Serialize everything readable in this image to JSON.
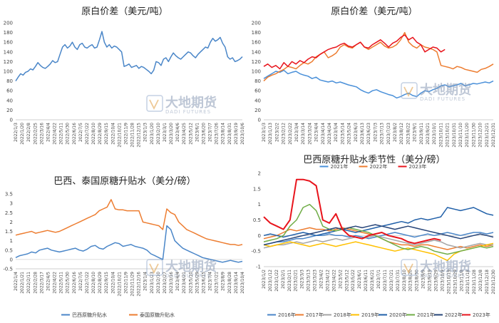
{
  "watermark": {
    "cn": "大地期货",
    "en": "DADI FUTURES"
  },
  "chart_data": [
    {
      "id": "c1",
      "type": "line",
      "title": "原白价差（美元/吨）",
      "ylim": [
        0,
        200
      ],
      "yticks": [
        0,
        20,
        40,
        60,
        80,
        100,
        120,
        140,
        160,
        180,
        200
      ],
      "x_tick_labels": [
        "2022/1/3",
        "2022/1/20",
        "2022/2/8",
        "2022/2/25",
        "2022/3/16",
        "2022/4/4",
        "2022/4/22",
        "2022/5/11",
        "2022/5/30",
        "2022/6/16",
        "2022/7/5",
        "2022/7/22",
        "2022/8/10",
        "2022/8/29",
        "2022/9/15",
        "2022/10/4",
        "2022/10/21",
        "2022/11/9",
        "2022/11/28",
        "2022/12/15",
        "2023/1/3",
        "2023/1/20",
        "2023/2/10",
        "2023/3/1",
        "2023/3/20",
        "2023/4/6",
        "2023/4/25",
        "2023/5/12",
        "2023/6/1",
        "2023/6/20",
        "2023/7/7",
        "2023/7/26",
        "2023/8/14",
        "2023/8/31",
        "2023/9/19",
        "2023/10/6"
      ],
      "series": [
        {
          "color": "#4a86c8",
          "values": [
            80,
            88,
            95,
            92,
            98,
            100,
            105,
            103,
            110,
            118,
            112,
            108,
            106,
            110,
            115,
            122,
            118,
            120,
            135,
            150,
            155,
            148,
            152,
            160,
            150,
            145,
            155,
            158,
            150,
            148,
            152,
            155,
            148,
            150,
            165,
            182,
            160,
            150,
            155,
            148,
            152,
            150,
            145,
            140,
            110,
            112,
            115,
            108,
            110,
            112,
            106,
            110,
            108,
            104,
            100,
            95,
            102,
            120,
            118,
            112,
            125,
            128,
            120,
            130,
            138,
            132,
            128,
            125,
            130,
            135,
            140,
            138,
            132,
            128,
            135,
            140,
            145,
            150,
            148,
            160,
            168,
            162,
            165,
            170,
            158,
            150,
            130,
            125,
            128,
            120,
            122,
            125,
            130
          ]
        }
      ]
    },
    {
      "id": "c2",
      "type": "line",
      "title": "原白价差（美元/吨）",
      "ylim": [
        0,
        200
      ],
      "yticks": [
        0,
        20,
        40,
        60,
        80,
        100,
        120,
        140,
        160,
        180,
        200
      ],
      "x_tick_labels": [
        "2023/1/3",
        "2023/1/13",
        "2023/2/2",
        "2023/2/12",
        "2023/2/22",
        "2023/3/4",
        "2023/3/14",
        "2023/3/24",
        "2023/4/4",
        "2023/4/14",
        "2023/4/24",
        "2023/5/4",
        "2023/5/14",
        "2023/5/24",
        "2023/6/3",
        "2023/6/13",
        "2023/6/23",
        "2023/7/3",
        "2023/7/13",
        "2023/7/23",
        "2023/8/2",
        "2023/8/12",
        "2023/8/22",
        "2023/9/1",
        "2023/9/11",
        "2023/9/21",
        "2023/10/1",
        "2023/10/11",
        "2023/10/21",
        "2023/10/31",
        "2023/11/10",
        "2023/11/20",
        "2023/11/30",
        "2023/12/10",
        "2023/12/21",
        "2023/12/31"
      ],
      "legend": [
        "2021年",
        "2022年",
        "2023年"
      ],
      "series": [
        {
          "name": "2021年",
          "color": "#4a90d9",
          "values": [
            85,
            90,
            95,
            100,
            98,
            102,
            95,
            98,
            100,
            95,
            92,
            90,
            85,
            88,
            82,
            80,
            78,
            80,
            76,
            78,
            75,
            72,
            70,
            68,
            62,
            58,
            55,
            60,
            62,
            58,
            55,
            52,
            50,
            45,
            48,
            52,
            55,
            50,
            48,
            55,
            60,
            58,
            62,
            65,
            70,
            72,
            68,
            70,
            72,
            75,
            70,
            72,
            75,
            74,
            76,
            78,
            76,
            80
          ]
        },
        {
          "name": "2022年",
          "color": "#ed7d31",
          "values": [
            80,
            88,
            92,
            95,
            100,
            104,
            110,
            108,
            105,
            112,
            118,
            115,
            120,
            130,
            135,
            140,
            128,
            132,
            138,
            150,
            155,
            150,
            148,
            155,
            160,
            150,
            145,
            150,
            155,
            160,
            152,
            148,
            150,
            155,
            165,
            180,
            160,
            152,
            148,
            155,
            150,
            148,
            145,
            140,
            112,
            110,
            108,
            105,
            110,
            108,
            104,
            102,
            100,
            98,
            104,
            106,
            110,
            115
          ]
        },
        {
          "name": "2023年",
          "color": "#e8141c",
          "values": [
            110,
            115,
            108,
            112,
            105,
            118,
            110,
            120,
            115,
            122,
            118,
            125,
            130,
            128,
            135,
            140,
            145,
            148,
            150,
            155,
            158,
            152,
            150,
            155,
            160,
            150,
            148,
            155,
            160,
            165,
            158,
            150,
            158,
            162,
            170,
            175,
            165,
            170,
            160,
            155,
            140,
            145,
            150,
            148,
            140,
            145
          ]
        }
      ]
    },
    {
      "id": "c3",
      "type": "line",
      "title": "巴西、泰国原糖升贴水（美分/磅）",
      "ylim": [
        -0.5,
        3.5
      ],
      "yticks": [
        -0.5,
        0,
        0.5,
        1,
        1.5,
        2,
        2.5,
        3,
        3.5
      ],
      "x_tick_labels": [
        "2022/1/4",
        "2022/1/21",
        "2022/2/11",
        "2022/2/28",
        "2022/3/17",
        "2022/4/5",
        "2022/4/22",
        "2022/5/11",
        "2022/5/30",
        "2022/6/16",
        "2022/7/5",
        "2022/7/22",
        "2022/8/10",
        "2022/8/29",
        "2022/9/15",
        "2022/10/4",
        "2022/10/21",
        "2022/11/9",
        "2022/11/29",
        "2022/12/16",
        "2023/1/4",
        "2023/1/23",
        "2023/2/10",
        "2023/2/27",
        "2023/3/16",
        "2023/4/4",
        "2023/4/21",
        "2023/5/10",
        "2023/5/29",
        "2023/6/15",
        "2023/7/4",
        "2023/7/21",
        "2023/8/9",
        "2023/8/28",
        "2023/9/14",
        "2023/10/4"
      ],
      "legend": [
        "巴西原糖升贴水",
        "泰国原糖升贴水"
      ],
      "series": [
        {
          "name": "巴西原糖升贴水",
          "color": "#4a86c8",
          "values": [
            0.1,
            0.2,
            0.25,
            0.3,
            0.4,
            0.35,
            0.5,
            0.55,
            0.6,
            0.5,
            0.45,
            0.4,
            0.45,
            0.5,
            0.55,
            0.6,
            0.5,
            0.45,
            0.55,
            0.7,
            0.75,
            0.6,
            0.55,
            0.7,
            0.8,
            0.9,
            0.85,
            0.7,
            0.75,
            0.8,
            0.7,
            0.65,
            0.6,
            0.5,
            0.3,
            0.2,
            0.1,
            0.0,
            1.8,
            1.6,
            1.0,
            0.8,
            0.6,
            0.5,
            0.4,
            0.3,
            0.2,
            0.1,
            0.05,
            0.0,
            -0.05,
            -0.1,
            -0.15,
            -0.1,
            -0.05,
            -0.1,
            -0.15,
            -0.1
          ]
        },
        {
          "name": "泰国原糖升贴水",
          "color": "#ed7d31",
          "values": [
            1.3,
            1.35,
            1.4,
            1.45,
            1.5,
            1.4,
            1.45,
            1.5,
            1.55,
            1.5,
            1.45,
            1.5,
            1.6,
            1.7,
            1.8,
            1.9,
            2.0,
            2.1,
            2.2,
            2.3,
            2.4,
            2.6,
            2.7,
            2.8,
            3.2,
            2.7,
            2.65,
            2.65,
            2.6,
            2.6,
            2.6,
            2.6,
            2.0,
            1.95,
            1.9,
            1.85,
            1.8,
            1.6,
            2.7,
            2.5,
            2.4,
            2.0,
            1.8,
            1.6,
            1.5,
            1.4,
            1.3,
            1.2,
            1.1,
            1.05,
            1.0,
            0.95,
            0.9,
            0.85,
            0.8,
            0.8,
            0.75,
            0.8
          ]
        }
      ]
    },
    {
      "id": "c4",
      "type": "line",
      "title": "巴西原糖升贴水季节性（美分/磅）",
      "ylim": [
        -1,
        2
      ],
      "yticks": [
        -1,
        -0.5,
        0,
        0.5,
        1,
        1.5,
        2
      ],
      "x_tick_labels": [
        "2023/1/2",
        "2023/1/12",
        "2023/1/22",
        "2023/2/1",
        "2023/2/11",
        "2023/2/21",
        "2023/3/3",
        "2023/3/13",
        "2023/3/23",
        "2023/4/2",
        "2023/4/12",
        "2023/4/22",
        "2023/5/2",
        "2023/5/12",
        "2023/5/22",
        "2023/6/1",
        "2023/6/11",
        "2023/6/21",
        "2023/7/1",
        "2023/7/11",
        "2023/7/21",
        "2023/7/31",
        "2023/8/10",
        "2023/8/20",
        "2023/8/30",
        "2023/9/9",
        "2023/9/19",
        "2023/9/29",
        "2023/10/9",
        "2023/10/19",
        "2023/10/29",
        "2023/11/8",
        "2023/11/18",
        "2023/11/28",
        "2023/12/8",
        "2023/12/18",
        "2023/12/30"
      ],
      "legend": [
        "2016年",
        "2017年",
        "2018年",
        "2019年",
        "2020年",
        "2021年",
        "2022年",
        "2023年"
      ],
      "series": [
        {
          "name": "2016年",
          "color": "#4a86c8",
          "values": [
            -0.3,
            -0.25,
            -0.2,
            -0.2,
            -0.15,
            -0.1,
            -0.1,
            -0.05,
            0.0,
            0.0,
            0.05,
            0.0,
            0.0,
            -0.05,
            0.0,
            -0.05,
            -0.1,
            -0.05,
            0.0,
            0.05,
            0.1,
            0.05,
            0.0,
            -0.05,
            0.0,
            0.05,
            0.0,
            0.05,
            0.1,
            0.05,
            0.0,
            0.05,
            0.1,
            0.1,
            0.05,
            0.1
          ]
        },
        {
          "name": "2017年",
          "color": "#ed7d31",
          "values": [
            -0.1,
            -0.05,
            0.0,
            0.1,
            0.2,
            0.15,
            0.2,
            0.25,
            0.2,
            0.2,
            0.15,
            0.2,
            0.25,
            0.2,
            0.15,
            0.1,
            0.05,
            0.0,
            -0.1,
            -0.2,
            -0.25,
            -0.3,
            -0.3,
            -0.35,
            -0.3,
            -0.3,
            -0.35,
            -0.4,
            -0.45,
            -0.4,
            -0.35,
            -0.4,
            -0.35,
            -0.3,
            -0.35,
            -0.3
          ]
        },
        {
          "name": "2018年",
          "color": "#a5a5a5",
          "values": [
            -0.4,
            -0.35,
            -0.3,
            -0.3,
            -0.25,
            -0.2,
            -0.25,
            -0.2,
            -0.15,
            -0.2,
            -0.15,
            -0.1,
            -0.15,
            -0.1,
            -0.05,
            -0.1,
            -0.05,
            0.0,
            -0.05,
            -0.1,
            -0.15,
            -0.2,
            -0.25,
            -0.3,
            -0.25,
            -0.2,
            -0.15,
            -0.2,
            -0.3,
            -0.35,
            -0.4,
            -0.35,
            -0.3,
            -0.25,
            -0.3,
            -0.3
          ]
        },
        {
          "name": "2019年",
          "color": "#ffc000",
          "values": [
            -0.3,
            -0.35,
            -0.3,
            -0.25,
            -0.2,
            -0.25,
            -0.3,
            -0.35,
            -0.3,
            -0.25,
            -0.3,
            -0.35,
            -0.3,
            -0.25,
            -0.2,
            -0.25,
            -0.3,
            -0.35,
            -0.4,
            -0.45,
            -0.5,
            -0.45,
            -0.4,
            -0.45,
            -0.5,
            -0.55,
            -0.6,
            -0.7,
            -0.8,
            -0.6,
            -0.5,
            -0.45,
            -0.4,
            -0.35,
            -0.3,
            -0.25
          ]
        },
        {
          "name": "2020年",
          "color": "#1f5fa8",
          "values": [
            0.0,
            0.05,
            0.0,
            -0.05,
            0.0,
            0.05,
            0.1,
            0.05,
            0.0,
            0.05,
            0.1,
            0.15,
            0.2,
            0.15,
            0.1,
            0.15,
            0.2,
            0.25,
            0.3,
            0.35,
            0.4,
            0.45,
            0.4,
            0.5,
            0.55,
            0.5,
            0.55,
            0.6,
            0.9,
            0.85,
            0.8,
            0.85,
            0.9,
            0.8,
            0.7,
            0.65
          ]
        },
        {
          "name": "2021年",
          "color": "#70ad47",
          "values": [
            -0.2,
            -0.15,
            -0.1,
            0.0,
            0.3,
            0.5,
            0.9,
            1.0,
            0.8,
            0.3,
            0.2,
            0.15,
            0.2,
            0.25,
            0.2,
            0.15,
            0.1,
            0.0,
            -0.1,
            -0.2,
            -0.3,
            -0.4,
            -0.45,
            -0.4,
            -0.35,
            -0.4,
            -0.5,
            -0.55,
            -0.6,
            -0.55,
            -0.5,
            -0.45,
            -0.4,
            -0.35,
            -0.4,
            -0.35
          ]
        },
        {
          "name": "2022年",
          "color": "#264478",
          "values": [
            -0.3,
            -0.25,
            -0.2,
            -0.15,
            -0.1,
            -0.05,
            0.0,
            0.05,
            0.1,
            0.15,
            0.2,
            0.25,
            0.2,
            0.25,
            0.3,
            0.25,
            0.3,
            0.35,
            0.3,
            0.25,
            0.2,
            0.25,
            0.3,
            0.25,
            0.2,
            0.15,
            0.1,
            0.05,
            0.0,
            -0.05,
            -0.1,
            -0.05,
            0.0,
            0.05,
            0.0,
            -0.05
          ]
        },
        {
          "name": "2023年",
          "color": "#e8141c",
          "values": [
            0.6,
            0.4,
            0.3,
            0.2,
            0.5,
            1.8,
            1.8,
            1.75,
            1.6,
            0.5,
            0.4,
            0.7,
            0.2,
            0.0,
            -0.05,
            -0.1,
            0.0,
            0.05,
            0.1,
            0.0,
            -0.05,
            -0.1,
            -0.2,
            -0.25,
            -0.2,
            -0.15,
            -0.1,
            -0.15
          ]
        }
      ]
    }
  ]
}
